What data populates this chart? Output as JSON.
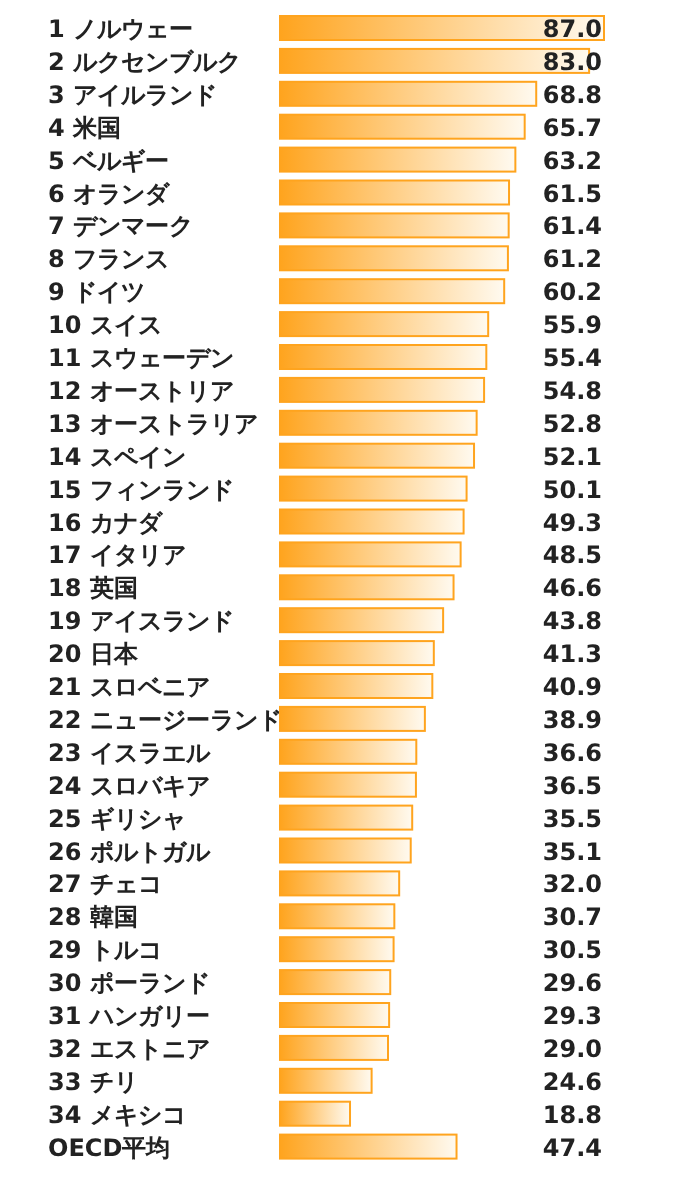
{
  "chart_data": {
    "type": "bar",
    "orientation": "horizontal",
    "color": "#ffa41e",
    "categories": [
      "1 ノルウェー",
      "2 ルクセンブルク",
      "3 アイルランド",
      "4 米国",
      "5 ベルギー",
      "6 オランダ",
      "7 デンマーク",
      "8 フランス",
      "9 ドイツ",
      "10 スイス",
      "11 スウェーデン",
      "12 オーストリア",
      "13 オーストラリア",
      "14 スペイン",
      "15 フィンランド",
      "16 カナダ",
      "17 イタリア",
      "18 英国",
      "19 アイスランド",
      "20 日本",
      "21 スロベニア",
      "22 ニュージーランド",
      "23 イスラエル",
      "24 スロバキア",
      "25 ギリシャ",
      "26 ポルトガル",
      "27 チェコ",
      "28 韓国",
      "29 トルコ",
      "30 ポーランド",
      "31 ハンガリー",
      "32 エストニア",
      "33 チリ",
      "34 メキシコ",
      "OECD平均"
    ],
    "values": [
      87.0,
      83.0,
      68.8,
      65.7,
      63.2,
      61.5,
      61.4,
      61.2,
      60.2,
      55.9,
      55.4,
      54.8,
      52.8,
      52.1,
      50.1,
      49.3,
      48.5,
      46.6,
      43.8,
      41.3,
      40.9,
      38.9,
      36.6,
      36.5,
      35.5,
      35.1,
      32.0,
      30.7,
      30.5,
      29.6,
      29.3,
      29.0,
      24.6,
      18.8,
      47.4
    ],
    "value_labels": [
      "87.0",
      "83.0",
      "68.8",
      "65.7",
      "63.2",
      "61.5",
      "61.4",
      "61.2",
      "60.2",
      "55.9",
      "55.4",
      "54.8",
      "52.8",
      "52.1",
      "50.1",
      "49.3",
      "48.5",
      "46.6",
      "43.8",
      "41.3",
      "40.9",
      "38.9",
      "36.6",
      "36.5",
      "35.5",
      "35.1",
      "32.0",
      "30.7",
      "30.5",
      "29.6",
      "29.3",
      "29.0",
      "24.6",
      "18.8",
      "47.4"
    ]
  }
}
